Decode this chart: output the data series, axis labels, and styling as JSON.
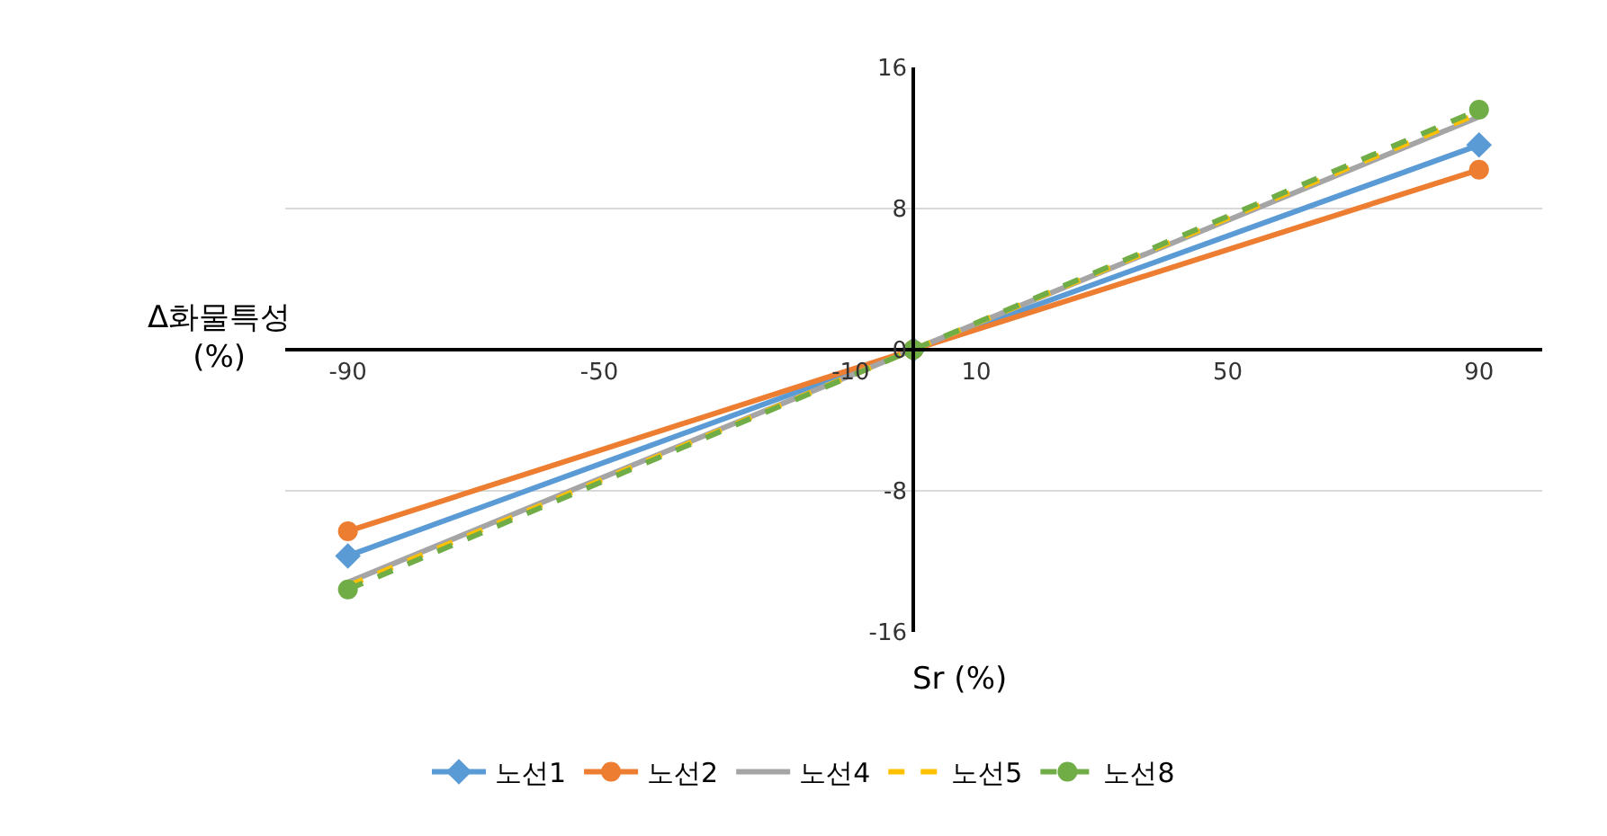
{
  "chart_data": {
    "type": "line",
    "xlabel": "Sr (%)",
    "ylabel": "Δ화물특성\n(%)",
    "x": [
      -90,
      0,
      90
    ],
    "series": [
      {
        "name": "노선1",
        "color": "#5b9bd5",
        "values": [
          -11.7,
          0,
          11.6
        ],
        "marker": "diamond",
        "line_style": "solid"
      },
      {
        "name": "노선2",
        "color": "#ed7d31",
        "values": [
          -10.3,
          0,
          10.2
        ],
        "marker": "circle",
        "line_style": "solid"
      },
      {
        "name": "노선4",
        "color": "#a5a5a5",
        "values": [
          -13.2,
          0,
          13.2
        ],
        "marker": "none",
        "line_style": "solid"
      },
      {
        "name": "노선5",
        "color": "#ffc000",
        "values": [
          -13.4,
          0,
          13.4
        ],
        "marker": "none",
        "line_style": "dashed"
      },
      {
        "name": "노선8",
        "color": "#70ad47",
        "values": [
          -13.6,
          0,
          13.6
        ],
        "marker": "circle",
        "line_style": "dashed"
      }
    ],
    "xlim": [
      -100,
      100
    ],
    "xticks": [
      -90,
      -50,
      -10,
      10,
      50,
      90
    ],
    "ylim": [
      -16,
      16
    ],
    "yticks": [
      -16,
      -8,
      0,
      8,
      16
    ],
    "grid": "y",
    "legend": "bottom"
  }
}
